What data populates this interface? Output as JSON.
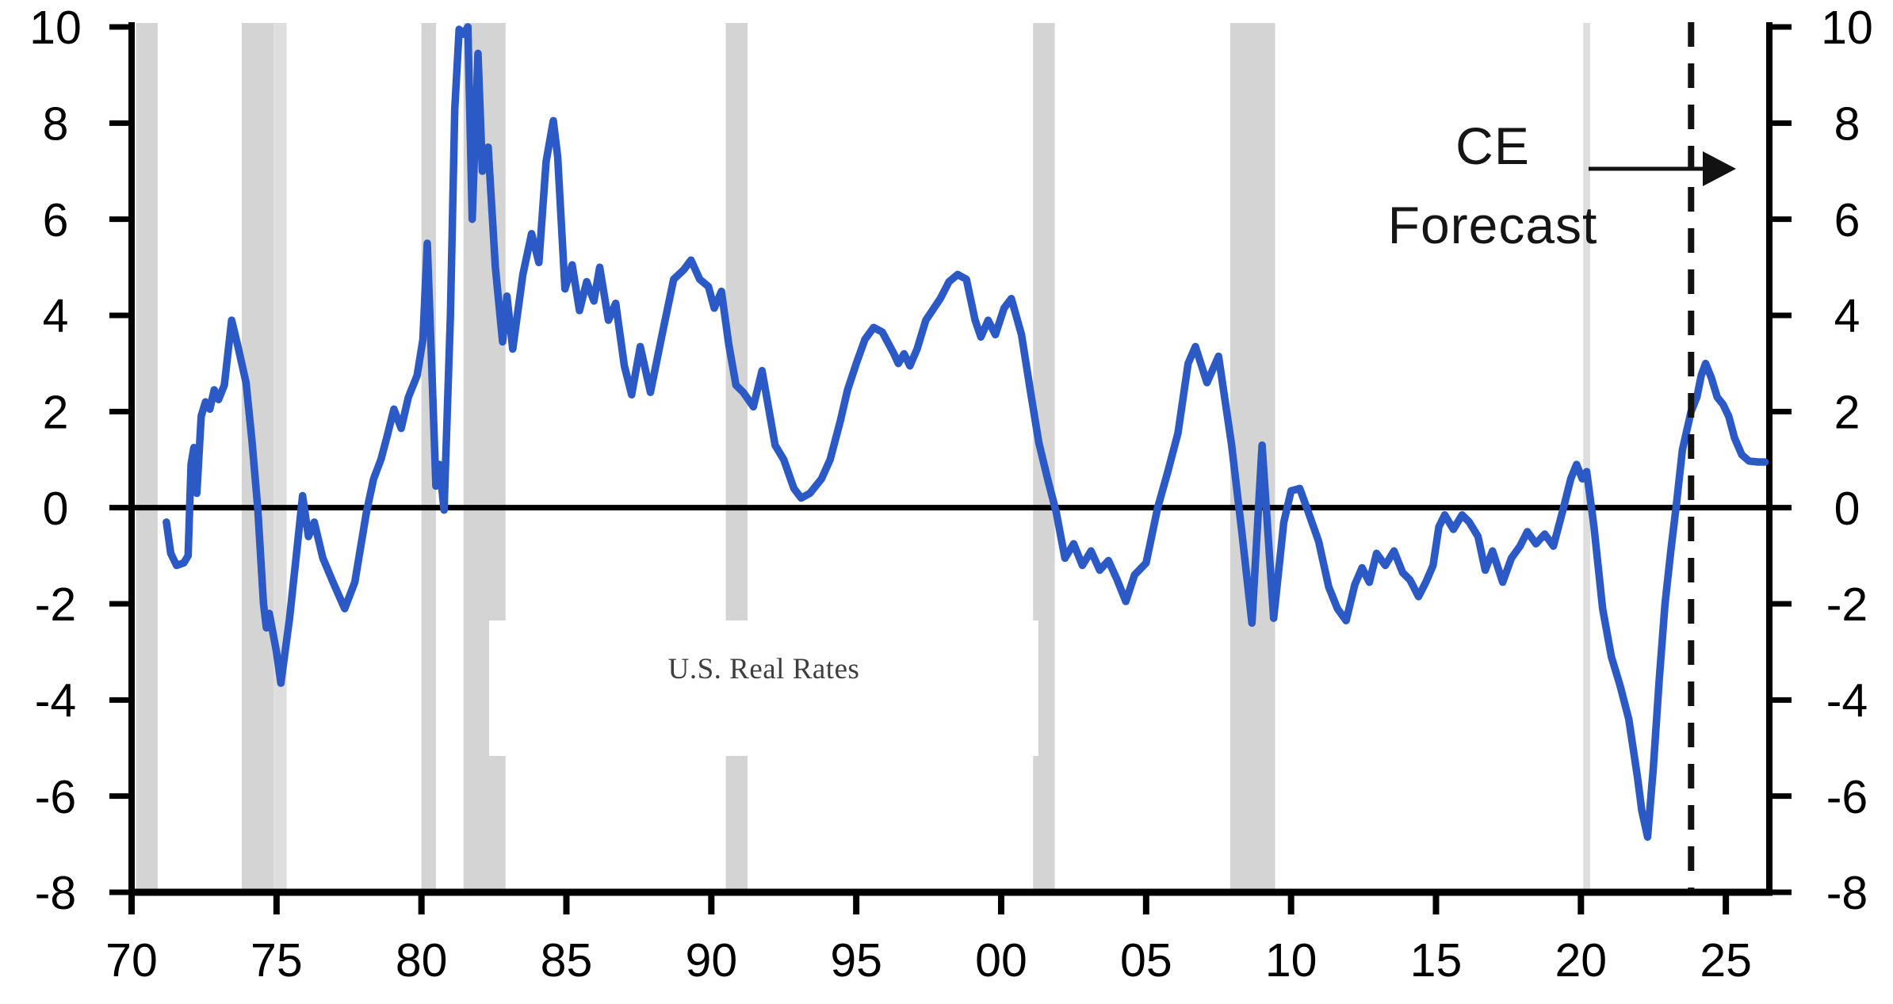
{
  "chart_data": {
    "type": "line",
    "title": "",
    "series_label": "U.S. Real Rates",
    "xlabel": "",
    "ylabel": "",
    "xlim": [
      1970,
      2026.5
    ],
    "ylim": [
      -8,
      10
    ],
    "grid": false,
    "legend_position": "none",
    "x_ticks": [
      {
        "year": 1970,
        "label": "70"
      },
      {
        "year": 1975,
        "label": "75"
      },
      {
        "year": 1980,
        "label": "80"
      },
      {
        "year": 1985,
        "label": "85"
      },
      {
        "year": 1990,
        "label": "90"
      },
      {
        "year": 1995,
        "label": "95"
      },
      {
        "year": 2000,
        "label": "00"
      },
      {
        "year": 2005,
        "label": "05"
      },
      {
        "year": 2010,
        "label": "10"
      },
      {
        "year": 2015,
        "label": "15"
      },
      {
        "year": 2020,
        "label": "20"
      },
      {
        "year": 2025,
        "label": "25"
      }
    ],
    "y_ticks": [
      10,
      8,
      6,
      4,
      2,
      0,
      -2,
      -4,
      -6,
      -8
    ],
    "recession_bands": [
      {
        "from": 1970.15,
        "to": 1970.9,
        "light": false
      },
      {
        "from": 1973.8,
        "to": 1974.9,
        "light": false
      },
      {
        "from": 1974.9,
        "to": 1975.35,
        "light": true
      },
      {
        "from": 1980.0,
        "to": 1980.5,
        "light": false
      },
      {
        "from": 1981.45,
        "to": 1982.9,
        "light": false
      },
      {
        "from": 1990.5,
        "to": 1991.25,
        "light": false
      },
      {
        "from": 2001.1,
        "to": 2001.85,
        "light": false
      },
      {
        "from": 2007.9,
        "to": 2009.45,
        "light": false
      },
      {
        "from": 2020.08,
        "to": 2020.32,
        "light": true
      }
    ],
    "forecast": {
      "divider_year": 2023.8,
      "label_line1": "CE",
      "label_line2": "Forecast"
    },
    "zero_line_value": 0,
    "colors": {
      "line": "#2b5ac6",
      "recession": "#d4d4d4",
      "recession_light": "#dedede",
      "axis": "#000000",
      "forecast_line": "#121212",
      "annotation_text": "#151515",
      "series_label_text": "#3e3e3e"
    },
    "series": [
      {
        "name": "U.S. Real Rates",
        "color": "#2b5ac6",
        "points": [
          [
            1971.2,
            -0.3
          ],
          [
            1971.35,
            -0.95
          ],
          [
            1971.55,
            -1.2
          ],
          [
            1971.8,
            -1.15
          ],
          [
            1971.95,
            -1.0
          ],
          [
            1972.05,
            0.9
          ],
          [
            1972.15,
            1.25
          ],
          [
            1972.25,
            0.3
          ],
          [
            1972.4,
            1.9
          ],
          [
            1972.55,
            2.2
          ],
          [
            1972.7,
            2.05
          ],
          [
            1972.85,
            2.45
          ],
          [
            1973.0,
            2.25
          ],
          [
            1973.2,
            2.55
          ],
          [
            1973.45,
            3.9
          ],
          [
            1973.65,
            3.4
          ],
          [
            1973.95,
            2.6
          ],
          [
            1974.15,
            1.4
          ],
          [
            1974.35,
            0.0
          ],
          [
            1974.55,
            -2.0
          ],
          [
            1974.65,
            -2.5
          ],
          [
            1974.75,
            -2.2
          ],
          [
            1975.0,
            -3.0
          ],
          [
            1975.15,
            -3.65
          ],
          [
            1975.45,
            -2.3
          ],
          [
            1975.7,
            -0.9
          ],
          [
            1975.9,
            0.25
          ],
          [
            1976.1,
            -0.6
          ],
          [
            1976.3,
            -0.3
          ],
          [
            1976.6,
            -1.05
          ],
          [
            1976.95,
            -1.55
          ],
          [
            1977.35,
            -2.1
          ],
          [
            1977.7,
            -1.55
          ],
          [
            1978.1,
            -0.1
          ],
          [
            1978.35,
            0.6
          ],
          [
            1978.6,
            1.0
          ],
          [
            1978.8,
            1.45
          ],
          [
            1979.05,
            2.05
          ],
          [
            1979.3,
            1.65
          ],
          [
            1979.55,
            2.3
          ],
          [
            1979.85,
            2.75
          ],
          [
            1980.05,
            3.5
          ],
          [
            1980.2,
            5.5
          ],
          [
            1980.35,
            3.0
          ],
          [
            1980.5,
            0.45
          ],
          [
            1980.62,
            0.9
          ],
          [
            1980.78,
            -0.05
          ],
          [
            1981.0,
            4.0
          ],
          [
            1981.15,
            8.3
          ],
          [
            1981.3,
            9.95
          ],
          [
            1981.45,
            9.85
          ],
          [
            1981.6,
            10.0
          ],
          [
            1981.75,
            6.0
          ],
          [
            1981.95,
            9.45
          ],
          [
            1982.1,
            7.0
          ],
          [
            1982.3,
            7.5
          ],
          [
            1982.55,
            5.0
          ],
          [
            1982.8,
            3.45
          ],
          [
            1982.95,
            4.4
          ],
          [
            1983.15,
            3.3
          ],
          [
            1983.5,
            4.85
          ],
          [
            1983.8,
            5.7
          ],
          [
            1984.05,
            5.1
          ],
          [
            1984.3,
            7.2
          ],
          [
            1984.55,
            8.05
          ],
          [
            1984.7,
            7.3
          ],
          [
            1984.95,
            4.55
          ],
          [
            1985.2,
            5.05
          ],
          [
            1985.45,
            4.1
          ],
          [
            1985.7,
            4.7
          ],
          [
            1985.95,
            4.3
          ],
          [
            1986.15,
            5.0
          ],
          [
            1986.45,
            3.9
          ],
          [
            1986.7,
            4.25
          ],
          [
            1987.0,
            2.95
          ],
          [
            1987.25,
            2.35
          ],
          [
            1987.55,
            3.35
          ],
          [
            1987.9,
            2.4
          ],
          [
            1988.3,
            3.6
          ],
          [
            1988.7,
            4.75
          ],
          [
            1989.05,
            4.95
          ],
          [
            1989.3,
            5.15
          ],
          [
            1989.6,
            4.75
          ],
          [
            1989.9,
            4.6
          ],
          [
            1990.1,
            4.15
          ],
          [
            1990.35,
            4.5
          ],
          [
            1990.6,
            3.4
          ],
          [
            1990.85,
            2.55
          ],
          [
            1991.1,
            2.4
          ],
          [
            1991.45,
            2.1
          ],
          [
            1991.75,
            2.85
          ],
          [
            1992.2,
            1.3
          ],
          [
            1992.5,
            1.0
          ],
          [
            1992.85,
            0.4
          ],
          [
            1993.1,
            0.2
          ],
          [
            1993.4,
            0.3
          ],
          [
            1993.8,
            0.6
          ],
          [
            1994.1,
            1.0
          ],
          [
            1994.45,
            1.8
          ],
          [
            1994.7,
            2.45
          ],
          [
            1995.0,
            3.0
          ],
          [
            1995.3,
            3.5
          ],
          [
            1995.6,
            3.75
          ],
          [
            1995.9,
            3.65
          ],
          [
            1996.3,
            3.2
          ],
          [
            1996.45,
            3.0
          ],
          [
            1996.65,
            3.2
          ],
          [
            1996.85,
            2.95
          ],
          [
            1997.1,
            3.3
          ],
          [
            1997.4,
            3.9
          ],
          [
            1997.9,
            4.35
          ],
          [
            1998.2,
            4.7
          ],
          [
            1998.5,
            4.85
          ],
          [
            1998.8,
            4.75
          ],
          [
            1999.1,
            3.9
          ],
          [
            1999.3,
            3.55
          ],
          [
            1999.55,
            3.9
          ],
          [
            1999.8,
            3.6
          ],
          [
            2000.1,
            4.15
          ],
          [
            2000.35,
            4.35
          ],
          [
            2000.7,
            3.6
          ],
          [
            2001.0,
            2.45
          ],
          [
            2001.3,
            1.35
          ],
          [
            2001.6,
            0.6
          ],
          [
            2001.9,
            -0.1
          ],
          [
            2002.2,
            -1.05
          ],
          [
            2002.5,
            -0.75
          ],
          [
            2002.8,
            -1.2
          ],
          [
            2003.1,
            -0.9
          ],
          [
            2003.4,
            -1.3
          ],
          [
            2003.7,
            -1.1
          ],
          [
            2004.0,
            -1.5
          ],
          [
            2004.3,
            -1.95
          ],
          [
            2004.6,
            -1.4
          ],
          [
            2005.0,
            -1.15
          ],
          [
            2005.4,
            0.0
          ],
          [
            2005.75,
            0.75
          ],
          [
            2006.1,
            1.55
          ],
          [
            2006.45,
            3.0
          ],
          [
            2006.7,
            3.35
          ],
          [
            2007.1,
            2.6
          ],
          [
            2007.5,
            3.15
          ],
          [
            2007.95,
            1.3
          ],
          [
            2008.3,
            -0.5
          ],
          [
            2008.65,
            -2.4
          ],
          [
            2009.0,
            1.3
          ],
          [
            2009.4,
            -2.3
          ],
          [
            2009.75,
            -0.3
          ],
          [
            2010.0,
            0.35
          ],
          [
            2010.3,
            0.4
          ],
          [
            2010.6,
            -0.1
          ],
          [
            2010.95,
            -0.7
          ],
          [
            2011.3,
            -1.65
          ],
          [
            2011.6,
            -2.1
          ],
          [
            2011.9,
            -2.35
          ],
          [
            2012.2,
            -1.6
          ],
          [
            2012.45,
            -1.25
          ],
          [
            2012.7,
            -1.55
          ],
          [
            2012.95,
            -0.95
          ],
          [
            2013.25,
            -1.2
          ],
          [
            2013.55,
            -0.9
          ],
          [
            2013.85,
            -1.35
          ],
          [
            2014.1,
            -1.5
          ],
          [
            2014.4,
            -1.85
          ],
          [
            2014.65,
            -1.55
          ],
          [
            2014.9,
            -1.2
          ],
          [
            2015.1,
            -0.4
          ],
          [
            2015.3,
            -0.15
          ],
          [
            2015.6,
            -0.45
          ],
          [
            2015.9,
            -0.15
          ],
          [
            2016.15,
            -0.3
          ],
          [
            2016.45,
            -0.6
          ],
          [
            2016.7,
            -1.3
          ],
          [
            2016.95,
            -0.9
          ],
          [
            2017.3,
            -1.55
          ],
          [
            2017.6,
            -1.05
          ],
          [
            2017.9,
            -0.8
          ],
          [
            2018.15,
            -0.5
          ],
          [
            2018.45,
            -0.75
          ],
          [
            2018.75,
            -0.55
          ],
          [
            2019.05,
            -0.8
          ],
          [
            2019.4,
            0.0
          ],
          [
            2019.65,
            0.6
          ],
          [
            2019.85,
            0.9
          ],
          [
            2020.05,
            0.6
          ],
          [
            2020.2,
            0.75
          ],
          [
            2020.45,
            -0.4
          ],
          [
            2020.75,
            -2.1
          ],
          [
            2021.05,
            -3.1
          ],
          [
            2021.35,
            -3.7
          ],
          [
            2021.65,
            -4.4
          ],
          [
            2021.95,
            -5.6
          ],
          [
            2022.1,
            -6.3
          ],
          [
            2022.3,
            -6.85
          ],
          [
            2022.5,
            -5.4
          ],
          [
            2022.7,
            -3.6
          ],
          [
            2022.9,
            -2.0
          ],
          [
            2023.1,
            -0.9
          ],
          [
            2023.3,
            0.1
          ],
          [
            2023.5,
            1.2
          ],
          [
            2023.8,
            2.0
          ],
          [
            2024.0,
            2.3
          ],
          [
            2024.15,
            2.75
          ],
          [
            2024.3,
            3.0
          ],
          [
            2024.5,
            2.7
          ],
          [
            2024.7,
            2.3
          ],
          [
            2024.9,
            2.15
          ],
          [
            2025.1,
            1.9
          ],
          [
            2025.3,
            1.45
          ],
          [
            2025.55,
            1.1
          ],
          [
            2025.8,
            0.97
          ],
          [
            2026.1,
            0.95
          ],
          [
            2026.35,
            0.95
          ]
        ]
      }
    ]
  }
}
